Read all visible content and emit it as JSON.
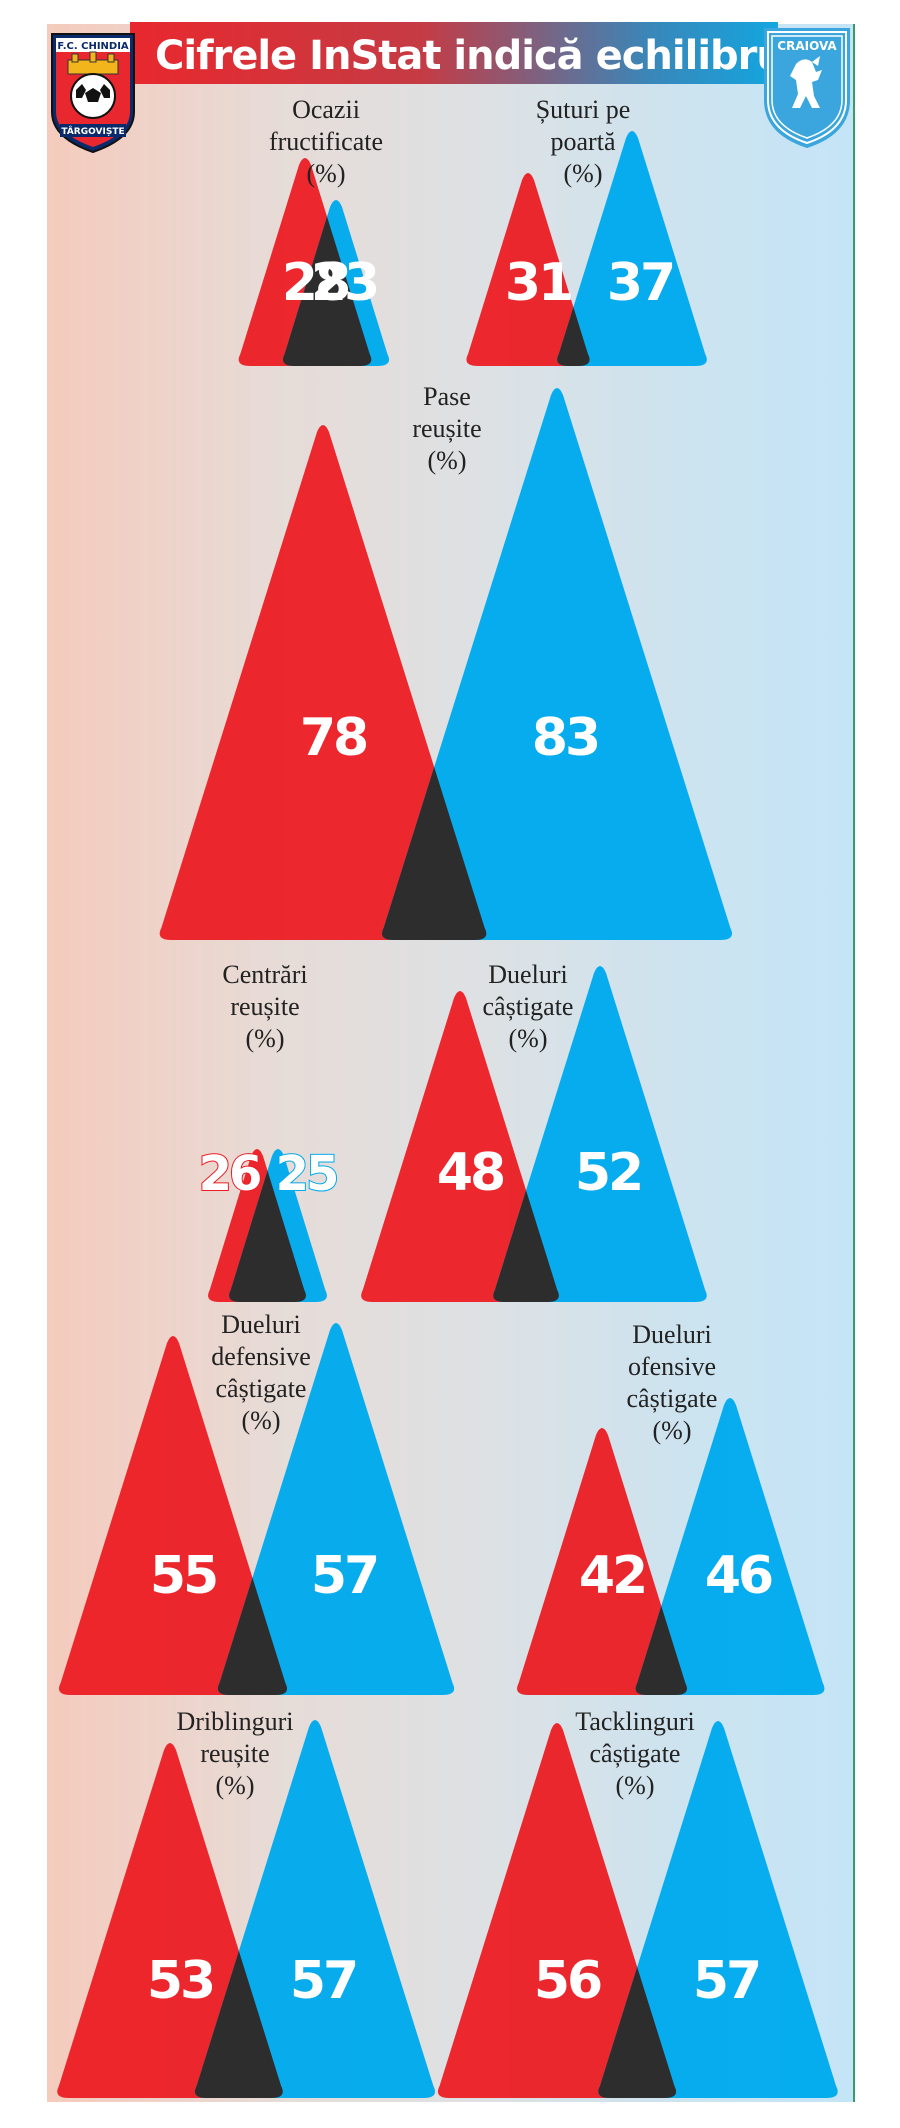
{
  "title": "Cifrele InStat indică echilibru",
  "logos": {
    "left": {
      "top_text": "F.C. CHINDIA",
      "bottom_text": "TÂRGOVIȘTE"
    },
    "right": {
      "text": "CRAIOVA"
    }
  },
  "colors": {
    "team_a": "#ec1c24",
    "team_b": "#00aaed",
    "overlap": "#2d2d2d"
  },
  "chart_data": {
    "type": "bar",
    "unit": "%",
    "series": [
      {
        "name": "F.C. Chindia Târgoviște",
        "color": "#ec1c24"
      },
      {
        "name": "Craiova",
        "color": "#00aaed"
      }
    ],
    "metrics": [
      {
        "label": [
          "Ocazii",
          "fructificate",
          "(%)"
        ],
        "values": [
          28,
          23
        ]
      },
      {
        "label": [
          "Șuturi pe",
          "poartă",
          "(%)"
        ],
        "values": [
          31,
          37
        ]
      },
      {
        "label": [
          "Pase",
          "reușite",
          "(%)"
        ],
        "values": [
          78,
          83
        ]
      },
      {
        "label": [
          "Centrări",
          "reușite",
          "(%)"
        ],
        "values": [
          26,
          25
        ]
      },
      {
        "label": [
          "Dueluri",
          "câștigate",
          "(%)"
        ],
        "values": [
          48,
          52
        ]
      },
      {
        "label": [
          "Dueluri",
          "defensive",
          "câștigate",
          "(%)"
        ],
        "values": [
          55,
          57
        ]
      },
      {
        "label": [
          "Dueluri",
          "ofensive",
          "câștigate",
          "(%)"
        ],
        "values": [
          42,
          46
        ]
      },
      {
        "label": [
          "Driblinguri",
          "reușite",
          "(%)"
        ],
        "values": [
          53,
          57
        ]
      },
      {
        "label": [
          "Tacklinguri",
          "câștigate",
          "(%)"
        ],
        "values": [
          56,
          57
        ]
      }
    ]
  }
}
